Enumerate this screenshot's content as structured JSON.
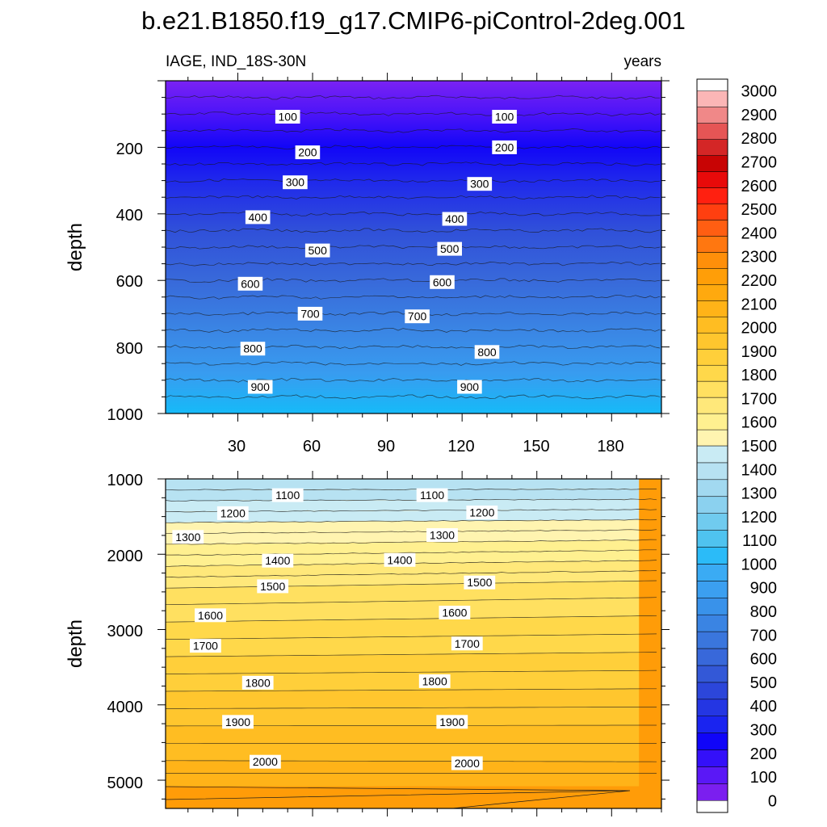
{
  "title": "b.e21.B1850.f19_g17.CMIP6-piControl-2deg.001",
  "colors": {
    "colorbar": [
      "#7b1fef",
      "#5a18f6",
      "#3410f9",
      "#1005f8",
      "#1a24f0",
      "#2436e3",
      "#2c46da",
      "#3358d7",
      "#3868da",
      "#3a76dd",
      "#3a84e3",
      "#3992ea",
      "#3b9ff0",
      "#3aabf4",
      "#2bbbf8",
      "#4fc3ef",
      "#70cbef",
      "#8bd1ef",
      "#a2d9f0",
      "#b7e2f2",
      "#c9ebf4",
      "#fff4b0",
      "#fff090",
      "#ffe87a",
      "#ffe060",
      "#ffd84a",
      "#ffcf3a",
      "#ffc62e",
      "#ffbd22",
      "#ffb318",
      "#ffa90e",
      "#ff9e08",
      "#ff8f0a",
      "#ff7710",
      "#ff5e12",
      "#ff3f10",
      "#ff2010",
      "#e80a0a",
      "#c80404",
      "#d42626",
      "#e65555",
      "#f08888",
      "#fbb6b6"
    ]
  },
  "chart_data": [
    {
      "type": "contour",
      "panel": "top",
      "left_label": "IAGE, IND_18S-30N",
      "right_label": "years",
      "ylabel": "depth",
      "ylim": [
        0,
        1000
      ],
      "y_inverted": true,
      "yticks": [
        "200",
        "400",
        "600",
        "800",
        "1000"
      ],
      "xlim": [
        1,
        200
      ],
      "xticks": [
        "30",
        "60",
        "90",
        "120",
        "150",
        "180"
      ],
      "contour_interval": 50,
      "contour_labels": [
        {
          "text": "100",
          "year": 50,
          "depth": 108
        },
        {
          "text": "100",
          "year": 137,
          "depth": 108
        },
        {
          "text": "200",
          "year": 58,
          "depth": 215
        },
        {
          "text": "200",
          "year": 137,
          "depth": 200
        },
        {
          "text": "300",
          "year": 53,
          "depth": 305
        },
        {
          "text": "300",
          "year": 127,
          "depth": 310
        },
        {
          "text": "400",
          "year": 38,
          "depth": 410
        },
        {
          "text": "400",
          "year": 117,
          "depth": 415
        },
        {
          "text": "500",
          "year": 62,
          "depth": 510
        },
        {
          "text": "500",
          "year": 115,
          "depth": 505
        },
        {
          "text": "600",
          "year": 35,
          "depth": 610
        },
        {
          "text": "600",
          "year": 112,
          "depth": 605
        },
        {
          "text": "700",
          "year": 59,
          "depth": 700
        },
        {
          "text": "700",
          "year": 102,
          "depth": 708
        },
        {
          "text": "800",
          "year": 36,
          "depth": 805
        },
        {
          "text": "800",
          "year": 130,
          "depth": 815
        },
        {
          "text": "900",
          "year": 39,
          "depth": 920
        },
        {
          "text": "900",
          "year": 123,
          "depth": 920
        }
      ]
    },
    {
      "type": "contour",
      "panel": "bottom",
      "ylabel": "depth",
      "ylim": [
        1000,
        5375
      ],
      "y_inverted": true,
      "yticks": [
        "1000",
        "2000",
        "3000",
        "4000",
        "5000"
      ],
      "xlim": [
        1,
        200
      ],
      "contour_interval": 50,
      "contour_labels": [
        {
          "text": "1100",
          "year": 50,
          "depth": 1215
        },
        {
          "text": "1100",
          "year": 108,
          "depth": 1215
        },
        {
          "text": "1200",
          "year": 28,
          "depth": 1455
        },
        {
          "text": "1200",
          "year": 128,
          "depth": 1445
        },
        {
          "text": "1300",
          "year": 10,
          "depth": 1770
        },
        {
          "text": "1300",
          "year": 112,
          "depth": 1745
        },
        {
          "text": "1400",
          "year": 46,
          "depth": 2085
        },
        {
          "text": "1400",
          "year": 95,
          "depth": 2075
        },
        {
          "text": "1500",
          "year": 44,
          "depth": 2425
        },
        {
          "text": "1500",
          "year": 127,
          "depth": 2375
        },
        {
          "text": "1600",
          "year": 19,
          "depth": 2810
        },
        {
          "text": "1600",
          "year": 117,
          "depth": 2775
        },
        {
          "text": "1700",
          "year": 17,
          "depth": 3215
        },
        {
          "text": "1700",
          "year": 122,
          "depth": 3185
        },
        {
          "text": "1800",
          "year": 38,
          "depth": 3705
        },
        {
          "text": "1800",
          "year": 109,
          "depth": 3685
        },
        {
          "text": "1900",
          "year": 30,
          "depth": 4225
        },
        {
          "text": "1900",
          "year": 116,
          "depth": 4225
        },
        {
          "text": "2000",
          "year": 41,
          "depth": 4755
        },
        {
          "text": "2000",
          "year": 122,
          "depth": 4775
        }
      ]
    },
    {
      "type": "colorbar",
      "levels_min": 0,
      "levels_max": 3000,
      "step": 100,
      "labels": [
        "3000",
        "2900",
        "2800",
        "2700",
        "2600",
        "2500",
        "2400",
        "2300",
        "2200",
        "2100",
        "2000",
        "1900",
        "1800",
        "1700",
        "1600",
        "1500",
        "1400",
        "1300",
        "1200",
        "1100",
        "1000",
        "900",
        "800",
        "700",
        "600",
        "500",
        "400",
        "300",
        "200",
        "100",
        "0"
      ]
    }
  ]
}
